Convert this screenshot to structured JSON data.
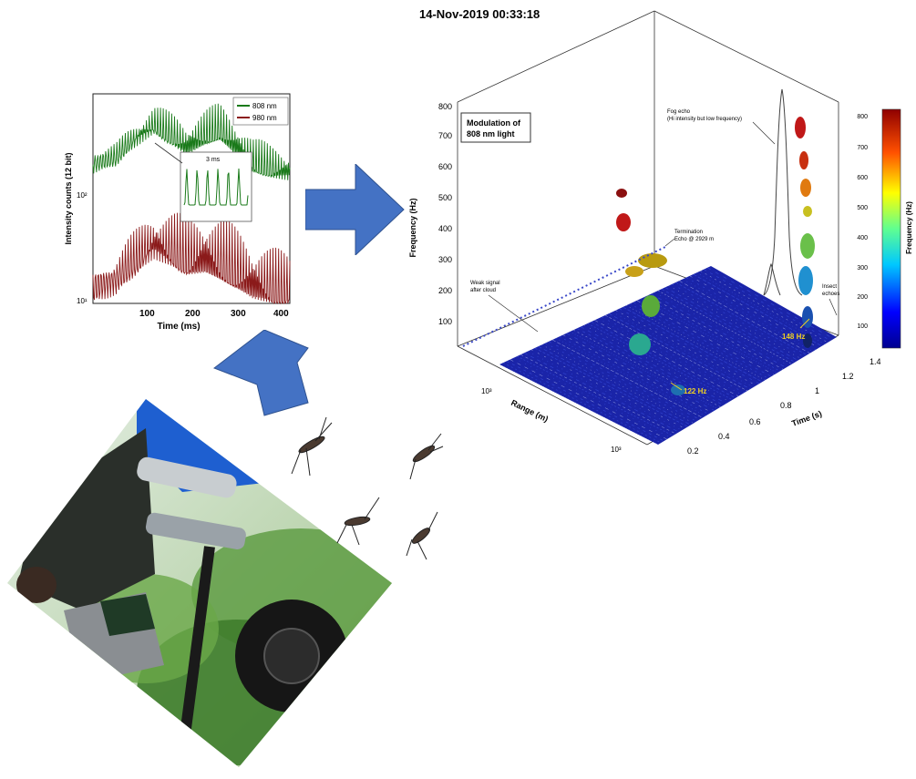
{
  "colors": {
    "arrow": "#4472c4",
    "series_808": "#1a7a1a",
    "series_980": "#8b1a1a",
    "floor_blue": "#1a24a8",
    "photo_sky": "#cfe3d8",
    "tent_blue": "#1e5fd0",
    "foliage": "#4d8a3a"
  },
  "timeseries_chart": {
    "ylabel": "Intensity counts (12 bit)",
    "xlabel": "Time (ms)",
    "x_ticks": [
      "100",
      "200",
      "300",
      "400"
    ],
    "y_ticks": [
      "10¹",
      "10²"
    ],
    "legend": [
      "808 nm",
      "980 nm"
    ],
    "inset_label": "3 ms"
  },
  "chart_data": {
    "type": "line",
    "title": "",
    "xlabel": "Time (ms)",
    "ylabel": "Intensity counts (12 bit)",
    "xlim": [
      0,
      420
    ],
    "ylim": [
      10,
      1000
    ],
    "yscale": "log",
    "legend_position": "top-right",
    "series": [
      {
        "name": "808 nm",
        "x": [
          0,
          50,
          100,
          130,
          160,
          200,
          240,
          270,
          300,
          340,
          380,
          420
        ],
        "values": [
          220,
          260,
          420,
          520,
          430,
          330,
          420,
          470,
          350,
          230,
          200,
          190
        ]
      },
      {
        "name": "980 nm",
        "x": [
          0,
          50,
          100,
          130,
          160,
          200,
          240,
          270,
          300,
          340,
          380,
          420
        ],
        "values": [
          15,
          18,
          30,
          40,
          35,
          28,
          30,
          26,
          22,
          17,
          15,
          14
        ]
      }
    ]
  },
  "spectrogram": {
    "title": "14-Nov-2019 00:33:18",
    "box_label_line1": "Modulation of",
    "box_label_line2": "808 nm light",
    "ylabel": "Frequency (Hz)",
    "xlabel_range": "Range (m)",
    "xlabel_time": "Time (s)",
    "y_ticks": [
      "100",
      "200",
      "300",
      "400",
      "500",
      "600",
      "700",
      "800"
    ],
    "time_ticks": [
      "0.2",
      "0.4",
      "0.6",
      "0.8",
      "1",
      "1.2",
      "1.4"
    ],
    "range_ticks": [
      "10³",
      "10³"
    ],
    "colorbar_label": "Frequency (Hz)",
    "colorbar_ticks": [
      "100",
      "200",
      "300",
      "400",
      "500",
      "600",
      "700",
      "800"
    ],
    "annotations": {
      "fog_line1": "Fog echo",
      "fog_line2": "(Hi intensity but low frequency)",
      "termination_line1": "Termination",
      "termination_line2": "Echo @ 2929 m",
      "weak_line1": "Weak signal",
      "weak_line2": "after cloud",
      "insect_line1": "Insect",
      "insect_line2": "echoes",
      "freq_148": "148 Hz",
      "freq_122": "122 Hz"
    }
  }
}
